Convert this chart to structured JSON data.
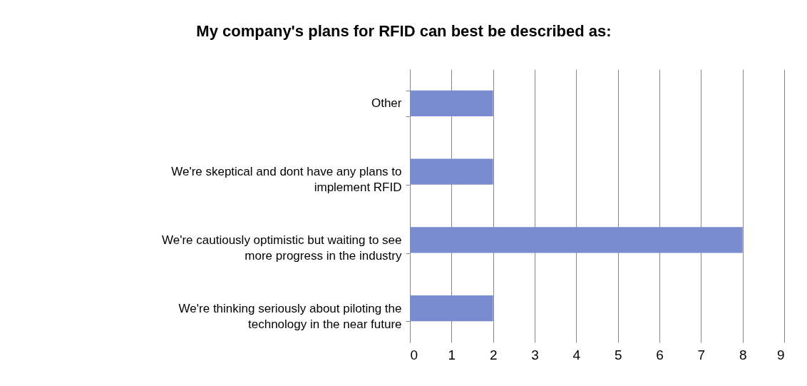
{
  "chart_data": {
    "type": "bar",
    "orientation": "horizontal",
    "title": "My company's plans for RFID can best be described as:",
    "categories": [
      "Other",
      "We're skeptical and dont have any plans to implement RFID",
      "We're cautiously optimistic but waiting to see more progress in the industry",
      "We're thinking seriously about piloting the technology in the near future"
    ],
    "values": [
      2,
      2,
      8,
      2
    ],
    "color": "#7b8bcf",
    "xlim": [
      0,
      9
    ],
    "xticks": [
      0,
      1,
      2,
      3,
      4,
      5,
      6,
      7,
      8,
      9
    ],
    "grid": "x"
  }
}
